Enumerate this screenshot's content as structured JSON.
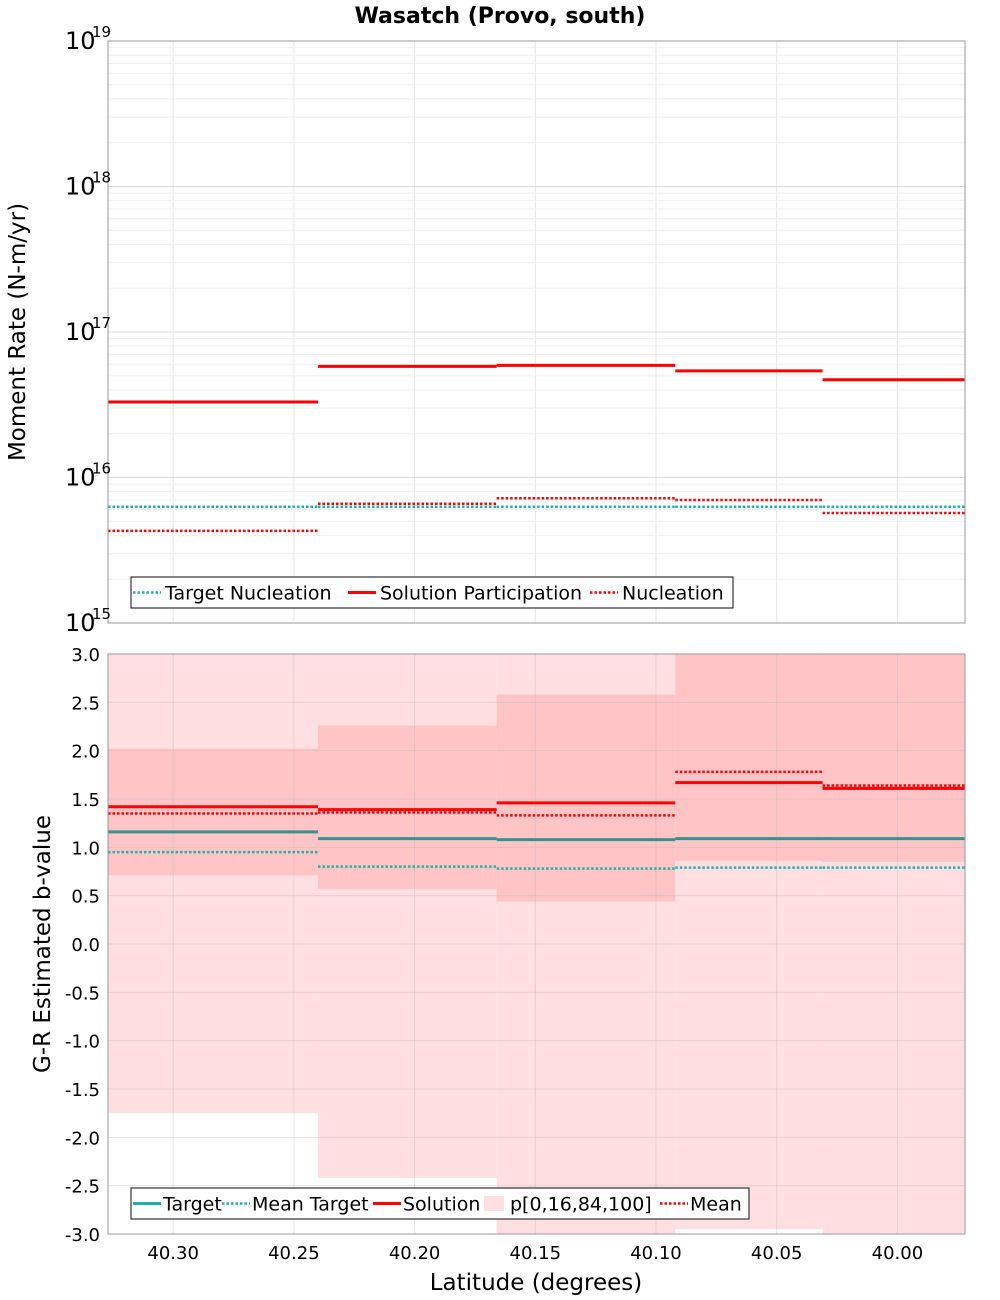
{
  "colors": {
    "target": "#20b2aa",
    "target_line": "#3a8f8f",
    "solution": "#ff0000",
    "band_outer": "#ffdfe1",
    "band_inner": "#ffc4c6",
    "grid": "#e6e6e6",
    "frame": "#999999"
  },
  "chart_data": [
    {
      "type": "line",
      "title": "Wasatch (Provo, south)",
      "xlabel": "",
      "ylabel": "Moment Rate (N-m/yr)",
      "yscale": "log",
      "xlim": [
        40.327,
        39.972
      ],
      "ylim": [
        1000000000000000.0,
        1e+19
      ],
      "ytick_base": "10",
      "ytick_exponents": [
        "15",
        "16",
        "17",
        "18",
        "19"
      ],
      "x_edges": [
        40.327,
        40.24,
        40.166,
        40.092,
        40.031,
        39.972
      ],
      "series": [
        {
          "name": "Target Nucleation",
          "style": "dotted",
          "values": [
            6300000000000000.0,
            6300000000000000.0,
            6300000000000000.0,
            6300000000000000.0,
            6300000000000000.0
          ]
        },
        {
          "name": "Solution Participation",
          "style": "solid",
          "values": [
            3.3e+16,
            5.8e+16,
            5.9e+16,
            5.4e+16,
            4.7e+16
          ]
        },
        {
          "name": "Nucleation",
          "style": "dotted",
          "values": [
            4300000000000000.0,
            6600000000000000.0,
            7200000000000000.0,
            7000000000000000.0,
            5700000000000000.0
          ]
        }
      ],
      "legend": [
        "Target Nucleation",
        "Solution Participation",
        "Nucleation"
      ],
      "legend_position": "bottom-left"
    },
    {
      "type": "line",
      "xlabel": "Latitude (degrees)",
      "ylabel": "G-R Estimated b-value",
      "xlim": [
        40.327,
        39.972
      ],
      "ylim": [
        -3.0,
        3.0
      ],
      "yticks": [
        "3.0",
        "2.5",
        "2.0",
        "1.5",
        "1.0",
        "0.5",
        "0.0",
        "-0.5",
        "-1.0",
        "-1.5",
        "-2.0",
        "-2.5",
        "-3.0"
      ],
      "xticks": [
        "40.30",
        "40.25",
        "40.20",
        "40.15",
        "40.10",
        "40.05",
        "40.00"
      ],
      "x_edges": [
        40.327,
        40.24,
        40.166,
        40.092,
        40.031,
        39.972
      ],
      "bands": {
        "name": "p[0,16,84,100]",
        "p0": [
          -1.75,
          -2.42,
          -3.0,
          -2.95,
          -3.0
        ],
        "p16": [
          0.71,
          0.57,
          0.44,
          0.86,
          0.85
        ],
        "p84": [
          2.02,
          2.26,
          2.58,
          3.0,
          3.0
        ],
        "p100": [
          3.0,
          3.0,
          3.0,
          3.0,
          3.0
        ]
      },
      "series": [
        {
          "name": "Target",
          "style": "solid",
          "values": [
            1.16,
            1.09,
            1.08,
            1.09,
            1.09
          ]
        },
        {
          "name": "Mean Target",
          "style": "dotted",
          "values": [
            0.95,
            0.8,
            0.78,
            0.79,
            0.79
          ]
        },
        {
          "name": "Solution",
          "style": "solid",
          "values": [
            1.42,
            1.39,
            1.46,
            1.67,
            1.61
          ]
        },
        {
          "name": "Mean",
          "style": "dotted",
          "values": [
            1.35,
            1.36,
            1.33,
            1.78,
            1.64
          ]
        }
      ],
      "legend": [
        "Target",
        "Mean Target",
        "Solution",
        "p[0,16,84,100]",
        "Mean"
      ],
      "legend_position": "bottom-left"
    }
  ]
}
